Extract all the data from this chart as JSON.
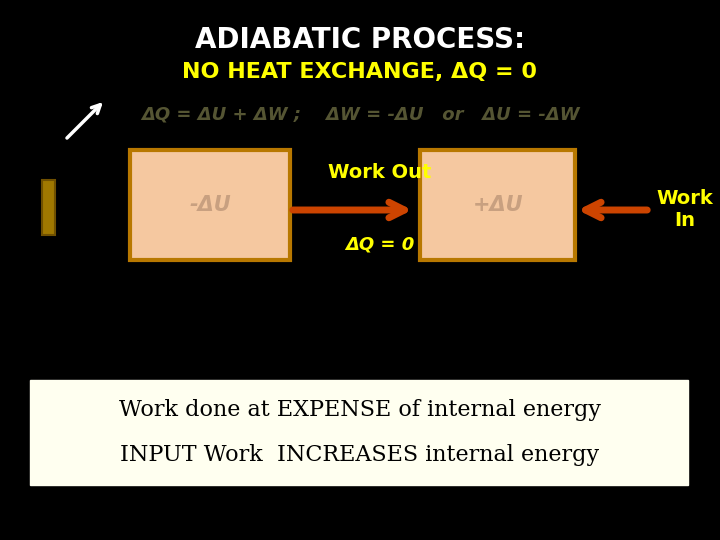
{
  "title": "ADIABATIC PROCESS:",
  "subtitle": "NO HEAT EXCHANGE, ΔQ = 0",
  "formula": "ΔQ = ΔU + ΔW ;    ΔW = -ΔU   or   ΔU = -ΔW",
  "box1_label": "-ΔU",
  "box2_label": "+ΔU",
  "arrow1_label_top": "Work Out",
  "arrow1_label_bot": "ΔQ = 0",
  "arrow2_label": "Work\nIn",
  "bottom_text1": "Work done at EXPENSE of internal energy",
  "bottom_text2": "INPUT Work  INCREASES internal energy",
  "bg_color": "#000000",
  "title_color": "#ffffff",
  "subtitle_color": "#ffff00",
  "formula_color": "#555533",
  "box_fill": "#f5c8a0",
  "box_edge": "#b87800",
  "box_label_color": "#c8a080",
  "arrow_color": "#cc4400",
  "work_label_color": "#ffff00",
  "bottom_bg": "#fffff0",
  "bottom_text_color": "#000000",
  "small_rect_fill": "#a07800",
  "small_rect_edge": "#705000"
}
